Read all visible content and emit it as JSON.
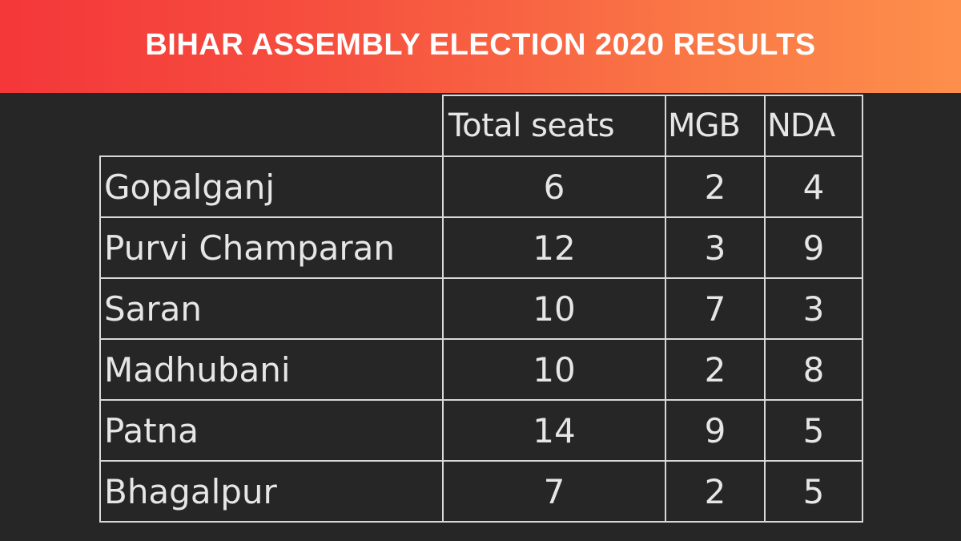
{
  "banner": {
    "title": "BIHAR ASSEMBLY ELECTION 2020 RESULTS"
  },
  "chart_data": {
    "type": "table",
    "title": "BIHAR ASSEMBLY ELECTION 2020 RESULTS",
    "columns": [
      "Total seats",
      "MGB",
      "NDA"
    ],
    "rows": [
      {
        "district": "Gopalganj",
        "total": "6",
        "mgb": "2",
        "nda": "4"
      },
      {
        "district": "Purvi Champaran",
        "total": "12",
        "mgb": "3",
        "nda": "9"
      },
      {
        "district": "Saran",
        "total": "10",
        "mgb": "7",
        "nda": "3"
      },
      {
        "district": "Madhubani",
        "total": "10",
        "mgb": "2",
        "nda": "8"
      },
      {
        "district": "Patna",
        "total": "14",
        "mgb": "9",
        "nda": "5"
      },
      {
        "district": "Bhagalpur",
        "total": "7",
        "mgb": "2",
        "nda": "5"
      }
    ]
  },
  "colors": {
    "banner_start": "#f4373a",
    "banner_end": "#fd8f4b",
    "background": "#262626",
    "text": "#e6e6e6",
    "grid": "#d9d9d9"
  }
}
